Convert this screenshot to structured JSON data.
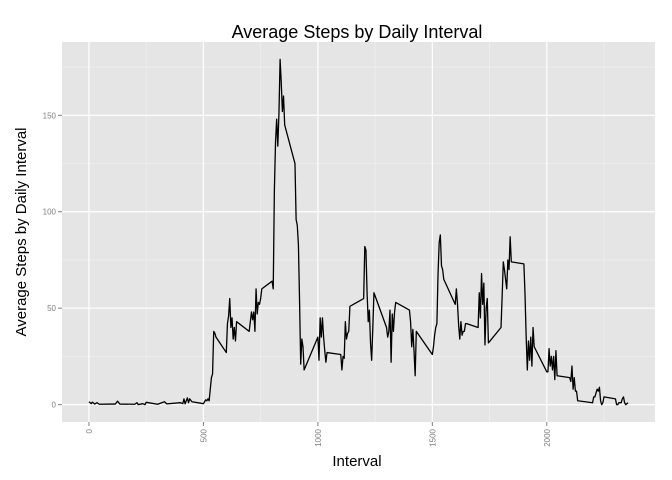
{
  "chart_data": {
    "type": "line",
    "title": "Average Steps by Daily Interval",
    "x_label": "Interval",
    "y_label": "Average Steps by Daily Interval",
    "x": [
      0,
      10,
      15,
      25,
      35,
      45,
      100,
      115,
      125,
      135,
      200,
      210,
      215,
      235,
      245,
      250,
      300,
      330,
      340,
      400,
      410,
      415,
      420,
      430,
      435,
      440,
      450,
      500,
      510,
      515,
      520,
      525,
      530,
      535,
      540,
      545,
      550,
      555,
      600,
      605,
      610,
      615,
      620,
      625,
      630,
      635,
      640,
      645,
      700,
      705,
      710,
      715,
      720,
      725,
      730,
      735,
      740,
      745,
      750,
      755,
      800,
      805,
      810,
      815,
      820,
      825,
      830,
      835,
      840,
      845,
      850,
      855,
      900,
      905,
      910,
      915,
      920,
      925,
      930,
      935,
      940,
      1000,
      1005,
      1010,
      1015,
      1020,
      1025,
      1030,
      1035,
      1040,
      1100,
      1105,
      1110,
      1115,
      1120,
      1125,
      1130,
      1135,
      1140,
      1200,
      1205,
      1210,
      1215,
      1220,
      1225,
      1230,
      1235,
      1240,
      1245,
      1300,
      1305,
      1310,
      1315,
      1320,
      1325,
      1330,
      1335,
      1340,
      1400,
      1405,
      1410,
      1415,
      1420,
      1425,
      1430,
      1500,
      1505,
      1510,
      1515,
      1520,
      1525,
      1530,
      1535,
      1540,
      1545,
      1550,
      1600,
      1605,
      1610,
      1615,
      1620,
      1625,
      1630,
      1635,
      1640,
      1645,
      1650,
      1700,
      1705,
      1710,
      1715,
      1720,
      1725,
      1730,
      1735,
      1740,
      1745,
      1800,
      1805,
      1810,
      1815,
      1820,
      1825,
      1830,
      1835,
      1840,
      1845,
      1900,
      1905,
      1910,
      1915,
      1920,
      1925,
      1930,
      1935,
      1940,
      1945,
      2000,
      2005,
      2010,
      2015,
      2020,
      2025,
      2030,
      2035,
      2040,
      2045,
      2100,
      2105,
      2110,
      2115,
      2120,
      2125,
      2130,
      2135,
      2200,
      2205,
      2210,
      2215,
      2220,
      2225,
      2230,
      2235,
      2240,
      2245,
      2250,
      2300,
      2305,
      2310,
      2315,
      2320,
      2325,
      2330,
      2335,
      2340,
      2345,
      2350,
      2355
    ],
    "series": [
      {
        "name": "steps",
        "color": "#000000",
        "values": [
          1.5,
          0.5,
          1.3,
          0.3,
          1,
          0.2,
          0.3,
          0.3,
          1.8,
          0.3,
          0.2,
          1,
          0,
          0.5,
          0,
          1.2,
          0.2,
          1.5,
          0.4,
          1,
          0.5,
          3,
          0.4,
          3.5,
          1,
          3,
          1.5,
          0.5,
          2.5,
          2,
          3,
          2,
          8,
          14,
          16,
          38,
          37,
          35,
          27,
          42,
          46,
          55,
          40,
          45,
          34,
          40,
          33,
          43,
          38,
          43,
          48,
          44,
          48,
          38,
          60,
          47,
          53,
          52,
          55,
          60,
          64,
          60,
          111,
          136,
          148,
          134,
          151,
          179,
          167,
          152,
          160,
          145,
          125,
          96,
          93,
          83,
          54,
          21,
          34,
          30,
          18,
          35,
          23,
          45,
          35,
          45,
          35,
          28,
          22,
          27,
          26,
          18,
          25,
          24,
          43,
          34,
          37,
          38,
          51,
          55,
          82,
          80,
          58,
          43,
          49,
          32,
          23,
          40,
          58,
          40,
          35,
          38,
          49,
          22,
          47,
          38,
          48,
          53,
          49,
          43,
          30,
          39,
          28,
          15,
          38,
          26,
          30,
          36,
          40,
          42,
          68,
          84,
          88,
          72,
          70,
          65,
          52,
          60,
          52,
          41,
          34,
          43,
          36,
          38,
          38,
          42,
          42,
          40,
          58,
          45,
          68,
          52,
          63,
          31,
          50,
          55,
          32,
          40,
          56,
          74,
          70,
          65,
          60,
          75,
          70,
          87,
          74,
          73,
          57,
          35,
          18,
          33,
          23,
          35,
          20,
          40,
          30,
          17,
          17,
          29,
          20,
          25,
          18,
          25,
          13,
          28,
          15,
          14,
          12,
          20,
          8,
          14,
          7,
          7,
          2,
          1,
          4,
          4,
          6,
          8,
          7,
          9,
          2,
          0,
          1,
          4,
          3,
          0,
          0,
          1,
          1,
          1,
          3,
          4,
          1,
          0,
          0.5,
          1
        ]
      }
    ],
    "xlim": [
      -117.75,
      2472.75
    ],
    "ylim": [
      -9,
      188
    ],
    "xticks": [
      0,
      500,
      1000,
      1500,
      2000
    ],
    "yticks": [
      0,
      50,
      100,
      150
    ],
    "x_minor_ticks": [
      250,
      750,
      1250,
      1750,
      2250
    ],
    "y_minor_ticks": [
      25,
      75,
      125,
      175
    ],
    "grid": true
  }
}
